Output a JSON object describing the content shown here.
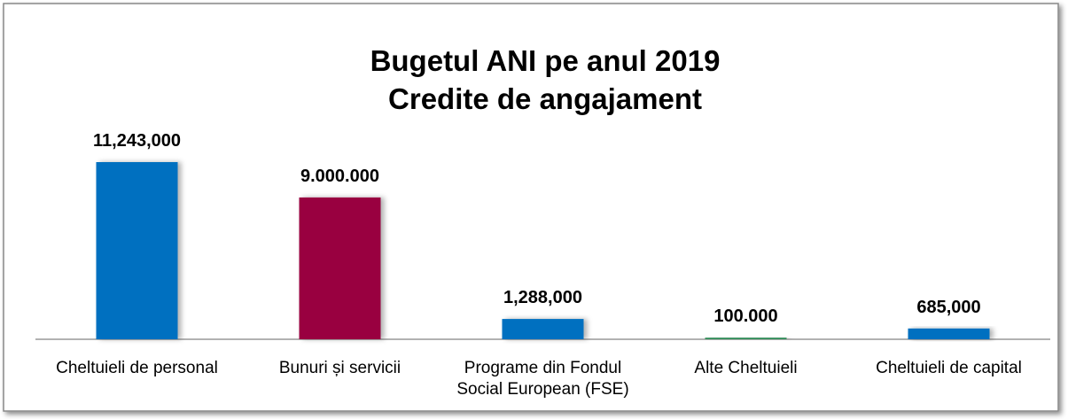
{
  "chart_data": {
    "type": "bar",
    "title": "Bugetul ANI pe anul 2019",
    "subtitle": "Credite de angajament",
    "categories": [
      "Cheltuieli de personal",
      "Bunuri și servicii",
      "Programe din Fondul Social European (FSE)",
      "Alte Cheltuieli",
      "Cheltuieli de capital"
    ],
    "values": [
      11243000,
      9000000,
      1288000,
      100000,
      685000
    ],
    "value_labels": [
      "11,243,000",
      "9.000.000",
      "1,288,000",
      "100.000",
      "685,000"
    ],
    "colors": [
      "#0070c0",
      "#990040",
      "#0070c0",
      "#2e8b57",
      "#0070c0"
    ]
  }
}
